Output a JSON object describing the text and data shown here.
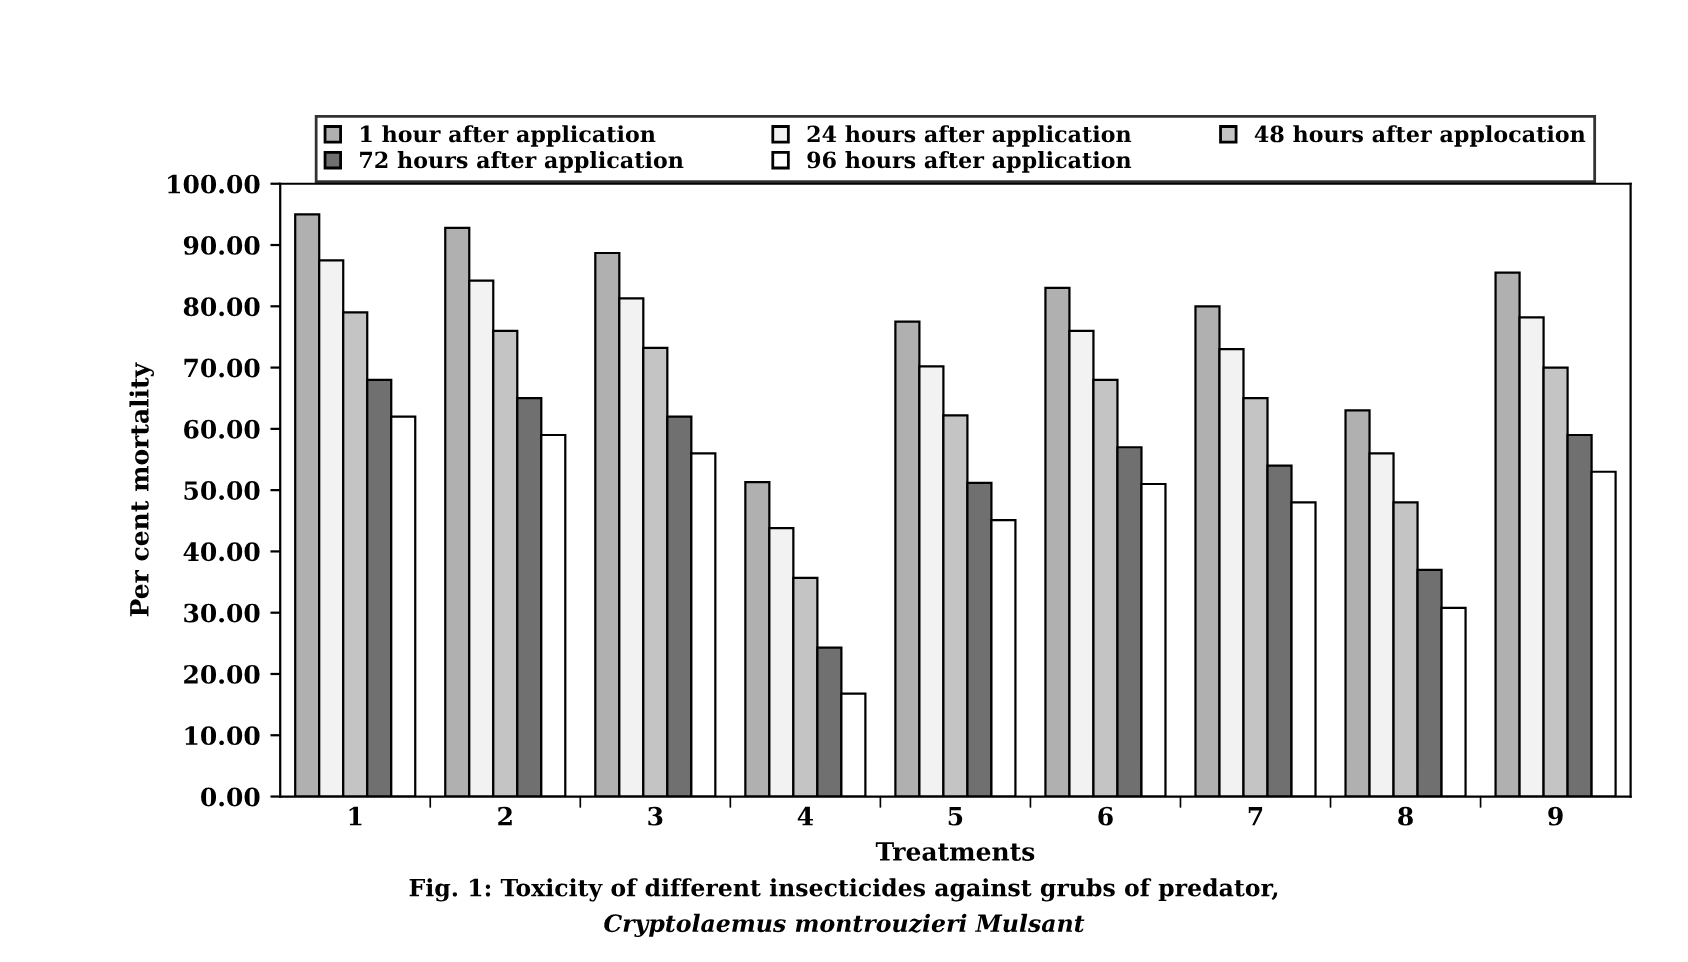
{
  "chart_data": {
    "type": "bar",
    "xlabel": "Treatments",
    "ylabel": "Per cent mortality",
    "categories": [
      "1",
      "2",
      "3",
      "4",
      "5",
      "6",
      "7",
      "8",
      "9"
    ],
    "series": [
      {
        "name": "1 hour after application",
        "color": "#b0b0b0",
        "values": [
          95,
          92.8,
          88.7,
          51.3,
          77.5,
          83,
          80,
          63,
          85.5
        ]
      },
      {
        "name": "24 hours after application",
        "color": "#f2f2f2",
        "values": [
          87.5,
          84.2,
          81.3,
          43.8,
          70.2,
          76,
          73,
          56,
          78.2
        ]
      },
      {
        "name": "48 hours after applocation",
        "color": "#c4c4c4",
        "values": [
          79,
          76,
          73.2,
          35.7,
          62.2,
          68,
          65,
          48,
          70
        ]
      },
      {
        "name": "72 hours after application",
        "color": "#707070",
        "values": [
          68,
          65,
          62,
          24.3,
          51.2,
          57,
          54,
          37,
          59
        ]
      },
      {
        "name": "96 hours after application",
        "color": "#ffffff",
        "values": [
          62,
          59,
          56,
          16.8,
          45.1,
          51,
          48,
          30.8,
          53
        ]
      }
    ],
    "ylim": [
      0,
      100
    ],
    "yticks": [
      {
        "value": 0,
        "label": "0.00"
      },
      {
        "value": 10,
        "label": "10.00"
      },
      {
        "value": 20,
        "label": "20.00"
      },
      {
        "value": 30,
        "label": "30.00"
      },
      {
        "value": 40,
        "label": "40.00"
      },
      {
        "value": 50,
        "label": "50.00"
      },
      {
        "value": 60,
        "label": "60.00"
      },
      {
        "value": 70,
        "label": "70.00"
      },
      {
        "value": 80,
        "label": "80.00"
      },
      {
        "value": 90,
        "label": "90.00"
      },
      {
        "value": 100,
        "label": "100.00"
      }
    ],
    "grid": false,
    "legend": "top",
    "annotations": [
      "Fig. 1: Toxicity of different insecticides against grubs of predator,",
      "Cryptolaemus montrouzieri Mulsant"
    ]
  }
}
